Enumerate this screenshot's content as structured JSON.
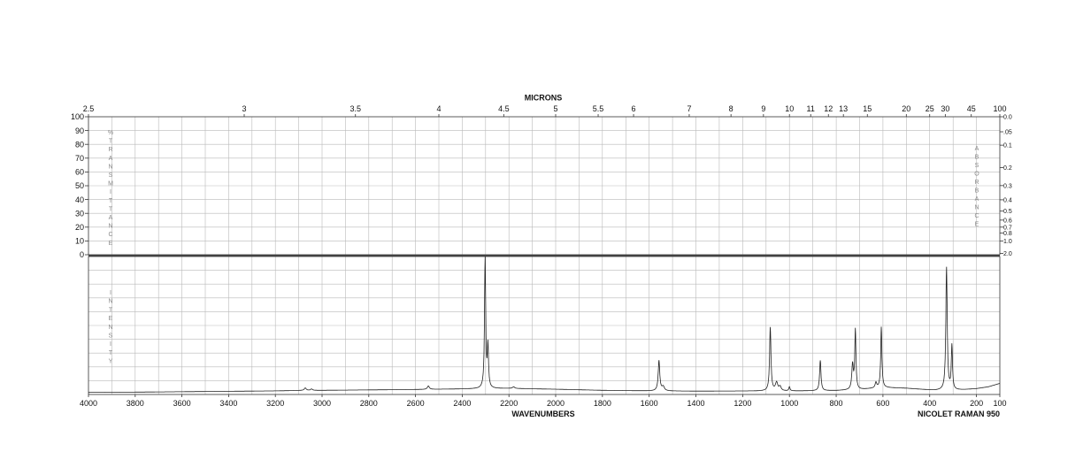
{
  "chart_data": {
    "type": "line",
    "top_axis_title": "MICRONS",
    "bottom_axis_title": "WAVENUMBERS",
    "instrument_label": "NICOLET RAMAN 950",
    "x_range": [
      4000,
      100
    ],
    "bottom_ticks": [
      4000,
      3800,
      3600,
      3400,
      3200,
      3000,
      2800,
      2600,
      2400,
      2200,
      2000,
      1800,
      1600,
      1400,
      1200,
      1000,
      800,
      600,
      400,
      200,
      100
    ],
    "top_ticks": [
      {
        "label": "2.5",
        "wn": 4000
      },
      {
        "label": "3",
        "wn": 3333.3
      },
      {
        "label": "3.5",
        "wn": 2857.1
      },
      {
        "label": "4",
        "wn": 2500
      },
      {
        "label": "4.5",
        "wn": 2222.2
      },
      {
        "label": "5",
        "wn": 2000
      },
      {
        "label": "5.5",
        "wn": 1818.2
      },
      {
        "label": "6",
        "wn": 1666.7
      },
      {
        "label": "7",
        "wn": 1428.6
      },
      {
        "label": "8",
        "wn": 1250
      },
      {
        "label": "9",
        "wn": 1111.1
      },
      {
        "label": "10",
        "wn": 1000
      },
      {
        "label": "11",
        "wn": 909.1
      },
      {
        "label": "12",
        "wn": 833.3
      },
      {
        "label": "13",
        "wn": 769.2
      },
      {
        "label": "15",
        "wn": 666.7
      },
      {
        "label": "20",
        "wn": 500
      },
      {
        "label": "25",
        "wn": 400
      },
      {
        "label": "30",
        "wn": 333.3
      },
      {
        "label": "45",
        "wn": 222.2
      },
      {
        "label": "100",
        "wn": 100
      }
    ],
    "transmittance_ticks": [
      100,
      90,
      80,
      70,
      60,
      50,
      40,
      30,
      20,
      10,
      0
    ],
    "absorbance_ticks": [
      {
        "label": "0.0",
        "t": 100
      },
      {
        "label": ".05",
        "t": 89.1
      },
      {
        "label": "0.1",
        "t": 79.4
      },
      {
        "label": "0.2",
        "t": 63.1
      },
      {
        "label": "0.3",
        "t": 50.1
      },
      {
        "label": "0.4",
        "t": 39.8
      },
      {
        "label": "0.5",
        "t": 31.6
      },
      {
        "label": "0.6",
        "t": 25.1
      },
      {
        "label": "0.7",
        "t": 20
      },
      {
        "label": "0.8",
        "t": 15.8
      },
      {
        "label": "1.0",
        "t": 10
      },
      {
        "label": "2.0",
        "t": 1
      }
    ],
    "left_label_upper": "%TRANSMITTANCE",
    "right_label_upper": "ABSORBANCE",
    "left_label_lower": "INTENSITY",
    "intensity_range": [
      0,
      100
    ],
    "intensity_gridlines": 10,
    "baseline": [
      [
        4000,
        1.5
      ],
      [
        3800,
        1.7
      ],
      [
        3600,
        2.0
      ],
      [
        3400,
        2.3
      ],
      [
        3200,
        2.6
      ],
      [
        3100,
        2.9
      ],
      [
        3000,
        3.0
      ],
      [
        2800,
        3.3
      ],
      [
        2600,
        3.6
      ],
      [
        2400,
        4.0
      ],
      [
        2200,
        4.4
      ],
      [
        2000,
        3.8
      ],
      [
        1800,
        3.0
      ],
      [
        1600,
        2.6
      ],
      [
        1400,
        2.4
      ],
      [
        1200,
        2.5
      ],
      [
        1000,
        2.5
      ],
      [
        800,
        2.8
      ],
      [
        700,
        3.5
      ],
      [
        600,
        5.0
      ],
      [
        500,
        4.5
      ],
      [
        420,
        3.5
      ],
      [
        380,
        3.0
      ],
      [
        300,
        3.0
      ],
      [
        250,
        3.5
      ],
      [
        200,
        4.2
      ],
      [
        150,
        5.5
      ],
      [
        100,
        8.0
      ]
    ],
    "peaks": [
      {
        "wn": 3072,
        "height": 1.8,
        "width": 5
      },
      {
        "wn": 3045,
        "height": 1.0,
        "width": 5
      },
      {
        "wn": 2545,
        "height": 2.5,
        "width": 5
      },
      {
        "wn": 2302,
        "height": 94.0,
        "width": 3.0
      },
      {
        "wn": 2290,
        "height": 30.0,
        "width": 3.0
      },
      {
        "wn": 2180,
        "height": 1.2,
        "width": 5
      },
      {
        "wn": 1558,
        "height": 22.0,
        "width": 4.0
      },
      {
        "wn": 1540,
        "height": 3.0,
        "width": 6
      },
      {
        "wn": 1082,
        "height": 46.0,
        "width": 3.5
      },
      {
        "wn": 1055,
        "height": 6.0,
        "width": 6
      },
      {
        "wn": 1040,
        "height": 3.0,
        "width": 5
      },
      {
        "wn": 1000,
        "height": 3.0,
        "width": 3
      },
      {
        "wn": 868,
        "height": 22.0,
        "width": 3.5
      },
      {
        "wn": 730,
        "height": 18.0,
        "width": 4
      },
      {
        "wn": 718,
        "height": 43.0,
        "width": 3
      },
      {
        "wn": 630,
        "height": 4.0,
        "width": 4
      },
      {
        "wn": 607,
        "height": 44.0,
        "width": 3
      },
      {
        "wn": 328,
        "height": 89.0,
        "width": 3.5
      },
      {
        "wn": 305,
        "height": 32.0,
        "width": 3
      }
    ]
  }
}
